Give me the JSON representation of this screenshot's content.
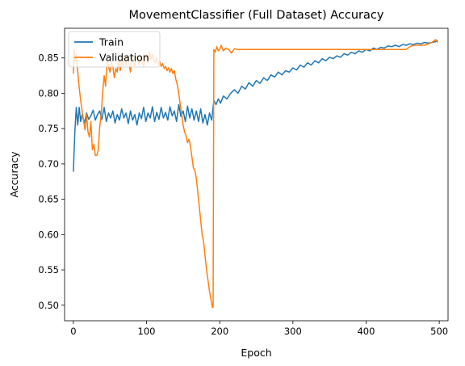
{
  "chart_data": {
    "type": "line",
    "title": "MovementClassifier (Full Dataset) Accuracy",
    "xlabel": "Epoch",
    "ylabel": "Accuracy",
    "xlim": [
      -12,
      512
    ],
    "ylim": [
      0.478,
      0.892
    ],
    "x_ticks": [
      0,
      100,
      200,
      300,
      400,
      500
    ],
    "y_ticks": [
      0.5,
      0.55,
      0.6,
      0.65,
      0.7,
      0.75,
      0.8,
      0.85
    ],
    "legend_position": "top-left",
    "series": [
      {
        "name": "Train",
        "color": "#1f77b4",
        "points": [
          [
            0,
            0.689
          ],
          [
            2,
            0.745
          ],
          [
            4,
            0.78
          ],
          [
            6,
            0.755
          ],
          [
            8,
            0.78
          ],
          [
            10,
            0.76
          ],
          [
            12,
            0.77
          ],
          [
            15,
            0.758
          ],
          [
            18,
            0.772
          ],
          [
            21,
            0.763
          ],
          [
            24,
            0.768
          ],
          [
            27,
            0.776
          ],
          [
            30,
            0.762
          ],
          [
            33,
            0.77
          ],
          [
            36,
            0.775
          ],
          [
            39,
            0.763
          ],
          [
            42,
            0.78
          ],
          [
            45,
            0.76
          ],
          [
            48,
            0.772
          ],
          [
            51,
            0.765
          ],
          [
            54,
            0.775
          ],
          [
            57,
            0.758
          ],
          [
            60,
            0.77
          ],
          [
            63,
            0.762
          ],
          [
            66,
            0.778
          ],
          [
            69,
            0.765
          ],
          [
            72,
            0.772
          ],
          [
            75,
            0.757
          ],
          [
            78,
            0.775
          ],
          [
            81,
            0.762
          ],
          [
            84,
            0.77
          ],
          [
            87,
            0.755
          ],
          [
            90,
            0.772
          ],
          [
            93,
            0.764
          ],
          [
            96,
            0.78
          ],
          [
            99,
            0.76
          ],
          [
            102,
            0.772
          ],
          [
            105,
            0.765
          ],
          [
            108,
            0.781
          ],
          [
            111,
            0.76
          ],
          [
            114,
            0.773
          ],
          [
            117,
            0.763
          ],
          [
            120,
            0.78
          ],
          [
            123,
            0.765
          ],
          [
            126,
            0.773
          ],
          [
            129,
            0.762
          ],
          [
            132,
            0.781
          ],
          [
            135,
            0.768
          ],
          [
            138,
            0.775
          ],
          [
            141,
            0.76
          ],
          [
            144,
            0.784
          ],
          [
            147,
            0.767
          ],
          [
            150,
            0.775
          ],
          [
            153,
            0.76
          ],
          [
            156,
            0.782
          ],
          [
            159,
            0.765
          ],
          [
            162,
            0.778
          ],
          [
            165,
            0.762
          ],
          [
            168,
            0.775
          ],
          [
            171,
            0.76
          ],
          [
            174,
            0.778
          ],
          [
            177,
            0.758
          ],
          [
            180,
            0.77
          ],
          [
            183,
            0.755
          ],
          [
            186,
            0.772
          ],
          [
            189,
            0.762
          ],
          [
            192,
            0.79
          ],
          [
            195,
            0.784
          ],
          [
            198,
            0.792
          ],
          [
            201,
            0.786
          ],
          [
            205,
            0.796
          ],
          [
            210,
            0.792
          ],
          [
            215,
            0.8
          ],
          [
            220,
            0.805
          ],
          [
            225,
            0.8
          ],
          [
            230,
            0.81
          ],
          [
            235,
            0.806
          ],
          [
            240,
            0.815
          ],
          [
            245,
            0.81
          ],
          [
            250,
            0.818
          ],
          [
            255,
            0.814
          ],
          [
            260,
            0.822
          ],
          [
            265,
            0.818
          ],
          [
            270,
            0.826
          ],
          [
            275,
            0.823
          ],
          [
            280,
            0.83
          ],
          [
            285,
            0.826
          ],
          [
            290,
            0.832
          ],
          [
            295,
            0.83
          ],
          [
            300,
            0.836
          ],
          [
            305,
            0.833
          ],
          [
            310,
            0.84
          ],
          [
            315,
            0.837
          ],
          [
            320,
            0.843
          ],
          [
            325,
            0.84
          ],
          [
            330,
            0.846
          ],
          [
            335,
            0.843
          ],
          [
            340,
            0.849
          ],
          [
            345,
            0.846
          ],
          [
            350,
            0.851
          ],
          [
            355,
            0.849
          ],
          [
            360,
            0.853
          ],
          [
            365,
            0.851
          ],
          [
            370,
            0.856
          ],
          [
            375,
            0.854
          ],
          [
            380,
            0.858
          ],
          [
            385,
            0.856
          ],
          [
            390,
            0.86
          ],
          [
            395,
            0.858
          ],
          [
            400,
            0.862
          ],
          [
            405,
            0.86
          ],
          [
            410,
            0.864
          ],
          [
            415,
            0.862
          ],
          [
            420,
            0.865
          ],
          [
            425,
            0.864
          ],
          [
            430,
            0.867
          ],
          [
            435,
            0.866
          ],
          [
            440,
            0.868
          ],
          [
            445,
            0.866
          ],
          [
            450,
            0.869
          ],
          [
            455,
            0.868
          ],
          [
            460,
            0.87
          ],
          [
            465,
            0.869
          ],
          [
            470,
            0.871
          ],
          [
            475,
            0.87
          ],
          [
            480,
            0.872
          ],
          [
            485,
            0.871
          ],
          [
            490,
            0.872
          ],
          [
            495,
            0.873
          ],
          [
            498,
            0.875
          ]
        ]
      },
      {
        "name": "Validation",
        "color": "#ff7f0e",
        "points": [
          [
            0,
            0.828
          ],
          [
            1,
            0.862
          ],
          [
            2,
            0.845
          ],
          [
            4,
            0.855
          ],
          [
            6,
            0.83
          ],
          [
            8,
            0.808
          ],
          [
            10,
            0.79
          ],
          [
            12,
            0.775
          ],
          [
            14,
            0.76
          ],
          [
            16,
            0.748
          ],
          [
            18,
            0.77
          ],
          [
            20,
            0.745
          ],
          [
            22,
            0.738
          ],
          [
            24,
            0.76
          ],
          [
            26,
            0.72
          ],
          [
            28,
            0.728
          ],
          [
            30,
            0.712
          ],
          [
            32,
            0.712
          ],
          [
            34,
            0.72
          ],
          [
            36,
            0.752
          ],
          [
            38,
            0.77
          ],
          [
            40,
            0.8
          ],
          [
            42,
            0.825
          ],
          [
            44,
            0.81
          ],
          [
            46,
            0.845
          ],
          [
            48,
            0.838
          ],
          [
            50,
            0.83
          ],
          [
            52,
            0.845
          ],
          [
            54,
            0.838
          ],
          [
            56,
            0.822
          ],
          [
            58,
            0.835
          ],
          [
            60,
            0.83
          ],
          [
            62,
            0.85
          ],
          [
            64,
            0.832
          ],
          [
            66,
            0.845
          ],
          [
            68,
            0.838
          ],
          [
            70,
            0.852
          ],
          [
            72,
            0.84
          ],
          [
            74,
            0.855
          ],
          [
            76,
            0.842
          ],
          [
            78,
            0.83
          ],
          [
            80,
            0.855
          ],
          [
            82,
            0.845
          ],
          [
            84,
            0.838
          ],
          [
            86,
            0.852
          ],
          [
            88,
            0.846
          ],
          [
            90,
            0.84
          ],
          [
            92,
            0.852
          ],
          [
            94,
            0.845
          ],
          [
            96,
            0.838
          ],
          [
            98,
            0.85
          ],
          [
            100,
            0.855
          ],
          [
            102,
            0.843
          ],
          [
            104,
            0.858
          ],
          [
            106,
            0.848
          ],
          [
            108,
            0.855
          ],
          [
            110,
            0.846
          ],
          [
            112,
            0.843
          ],
          [
            114,
            0.85
          ],
          [
            116,
            0.84
          ],
          [
            118,
            0.845
          ],
          [
            120,
            0.838
          ],
          [
            122,
            0.842
          ],
          [
            124,
            0.835
          ],
          [
            126,
            0.838
          ],
          [
            128,
            0.832
          ],
          [
            130,
            0.836
          ],
          [
            132,
            0.83
          ],
          [
            134,
            0.835
          ],
          [
            136,
            0.828
          ],
          [
            138,
            0.832
          ],
          [
            140,
            0.82
          ],
          [
            142,
            0.812
          ],
          [
            144,
            0.8
          ],
          [
            146,
            0.785
          ],
          [
            148,
            0.77
          ],
          [
            150,
            0.755
          ],
          [
            152,
            0.745
          ],
          [
            154,
            0.74
          ],
          [
            156,
            0.73
          ],
          [
            158,
            0.735
          ],
          [
            160,
            0.725
          ],
          [
            162,
            0.71
          ],
          [
            164,
            0.695
          ],
          [
            166,
            0.69
          ],
          [
            168,
            0.68
          ],
          [
            170,
            0.66
          ],
          [
            172,
            0.64
          ],
          [
            174,
            0.62
          ],
          [
            176,
            0.6
          ],
          [
            178,
            0.59
          ],
          [
            180,
            0.57
          ],
          [
            182,
            0.55
          ],
          [
            184,
            0.535
          ],
          [
            186,
            0.52
          ],
          [
            188,
            0.508
          ],
          [
            190,
            0.497
          ],
          [
            191,
            0.497
          ],
          [
            192,
            0.862
          ],
          [
            194,
            0.858
          ],
          [
            196,
            0.866
          ],
          [
            198,
            0.86
          ],
          [
            200,
            0.862
          ],
          [
            202,
            0.868
          ],
          [
            205,
            0.86
          ],
          [
            208,
            0.864
          ],
          [
            212,
            0.862
          ],
          [
            216,
            0.857
          ],
          [
            220,
            0.863
          ],
          [
            225,
            0.862
          ],
          [
            230,
            0.862
          ],
          [
            240,
            0.862
          ],
          [
            260,
            0.862
          ],
          [
            280,
            0.862
          ],
          [
            300,
            0.862
          ],
          [
            330,
            0.862
          ],
          [
            360,
            0.862
          ],
          [
            400,
            0.862
          ],
          [
            430,
            0.862
          ],
          [
            455,
            0.862
          ],
          [
            460,
            0.866
          ],
          [
            465,
            0.868
          ],
          [
            470,
            0.868
          ],
          [
            480,
            0.868
          ],
          [
            490,
            0.872
          ],
          [
            495,
            0.876
          ],
          [
            498,
            0.872
          ]
        ]
      }
    ]
  }
}
